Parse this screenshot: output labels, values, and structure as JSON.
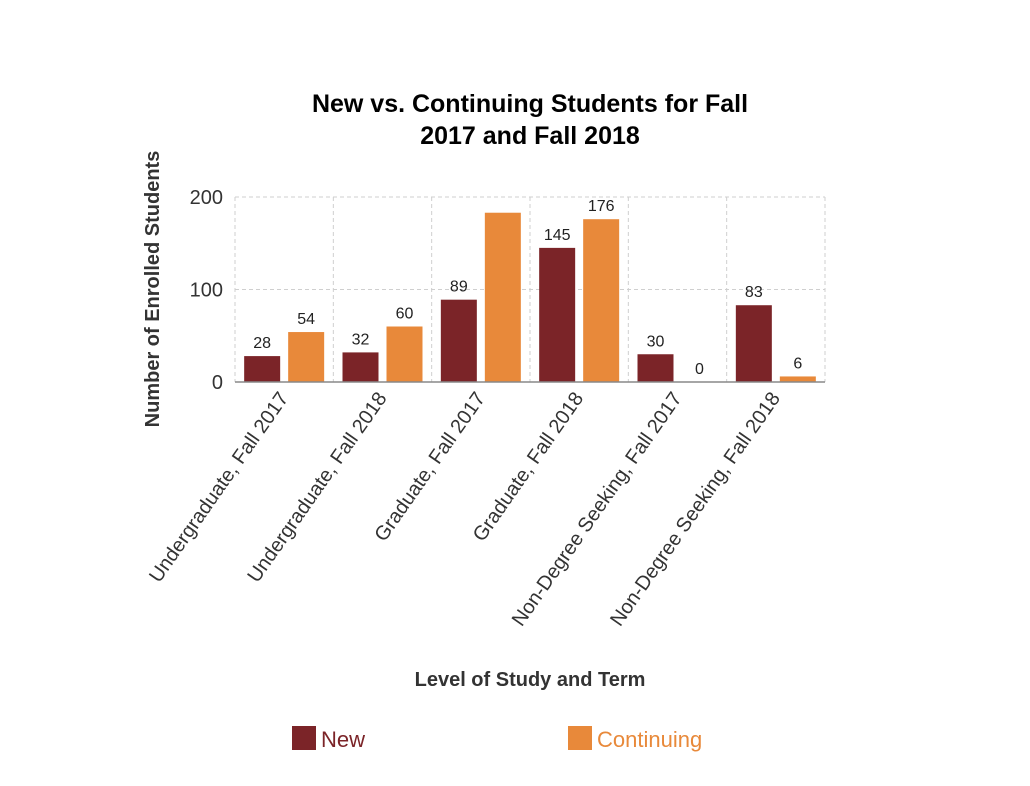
{
  "chart_data": {
    "type": "bar",
    "title_lines": [
      "New vs. Continuing Students for Fall",
      "2017 and Fall 2018"
    ],
    "xlabel": "Level of Study and Term",
    "ylabel": "Number of Enrolled Students",
    "categories": [
      "Undergraduate, Fall 2017",
      "Undergraduate, Fall 2018",
      "Graduate, Fall 2017",
      "Graduate, Fall 2018",
      "Non-Degree Seeking, Fall 2017",
      "Non-Degree Seeking, Fall 2018"
    ],
    "ylim": [
      0,
      200
    ],
    "yticks": [
      0,
      100,
      200
    ],
    "grid": true,
    "legend_position": "bottom",
    "series": [
      {
        "name": "New",
        "color": "#7b2428",
        "values": [
          28,
          32,
          89,
          145,
          30,
          83
        ],
        "labels": [
          "28",
          "32",
          "89",
          "145",
          "30",
          "83"
        ]
      },
      {
        "name": "Continuing",
        "color": "#e8893a",
        "values": [
          54,
          60,
          183,
          176,
          0,
          6
        ],
        "labels": [
          "54",
          "60",
          "",
          "176",
          "0",
          "6"
        ]
      }
    ]
  }
}
